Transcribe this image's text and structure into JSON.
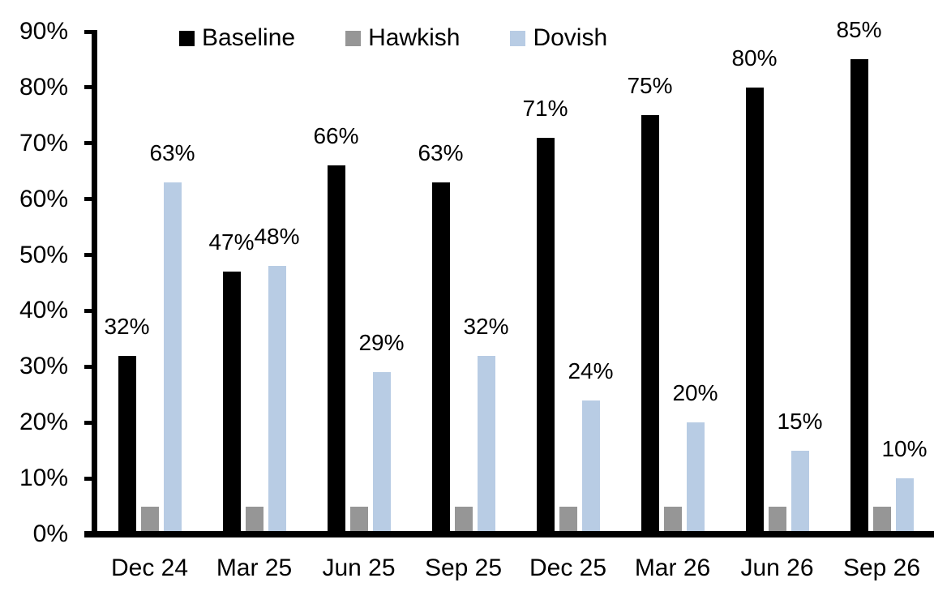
{
  "chart_data": {
    "type": "bar",
    "title": "",
    "categories": [
      "Dec 24",
      "Mar 25",
      "Jun 25",
      "Sep 25",
      "Dec 25",
      "Mar 26",
      "Jun 26",
      "Sep 26"
    ],
    "series": [
      {
        "name": "Baseline",
        "color": "#000000",
        "values": [
          32,
          47,
          66,
          63,
          71,
          75,
          80,
          85
        ],
        "show_labels": true
      },
      {
        "name": "Hawkish",
        "color": "#969696",
        "values": [
          5,
          5,
          5,
          5,
          5,
          5,
          5,
          5
        ],
        "show_labels": false
      },
      {
        "name": "Dovish",
        "color": "#B8CCE4",
        "values": [
          63,
          48,
          29,
          32,
          24,
          20,
          15,
          10
        ],
        "show_labels": true
      }
    ],
    "data_label_format": "{v}%",
    "y_axis": {
      "min": 0,
      "max": 90,
      "step": 10,
      "tick_labels": [
        "0%",
        "10%",
        "20%",
        "30%",
        "40%",
        "50%",
        "60%",
        "70%",
        "80%",
        "90%"
      ]
    },
    "xlabel": "",
    "ylabel": "",
    "grid": false,
    "legend": {
      "position": "top",
      "entries": [
        {
          "label": "Baseline",
          "color": "#000000"
        },
        {
          "label": "Hawkish",
          "color": "#969696"
        },
        {
          "label": "Dovish",
          "color": "#B8CCE4"
        }
      ]
    },
    "axis_color": "#000000",
    "background_color": "#FFFFFF"
  }
}
